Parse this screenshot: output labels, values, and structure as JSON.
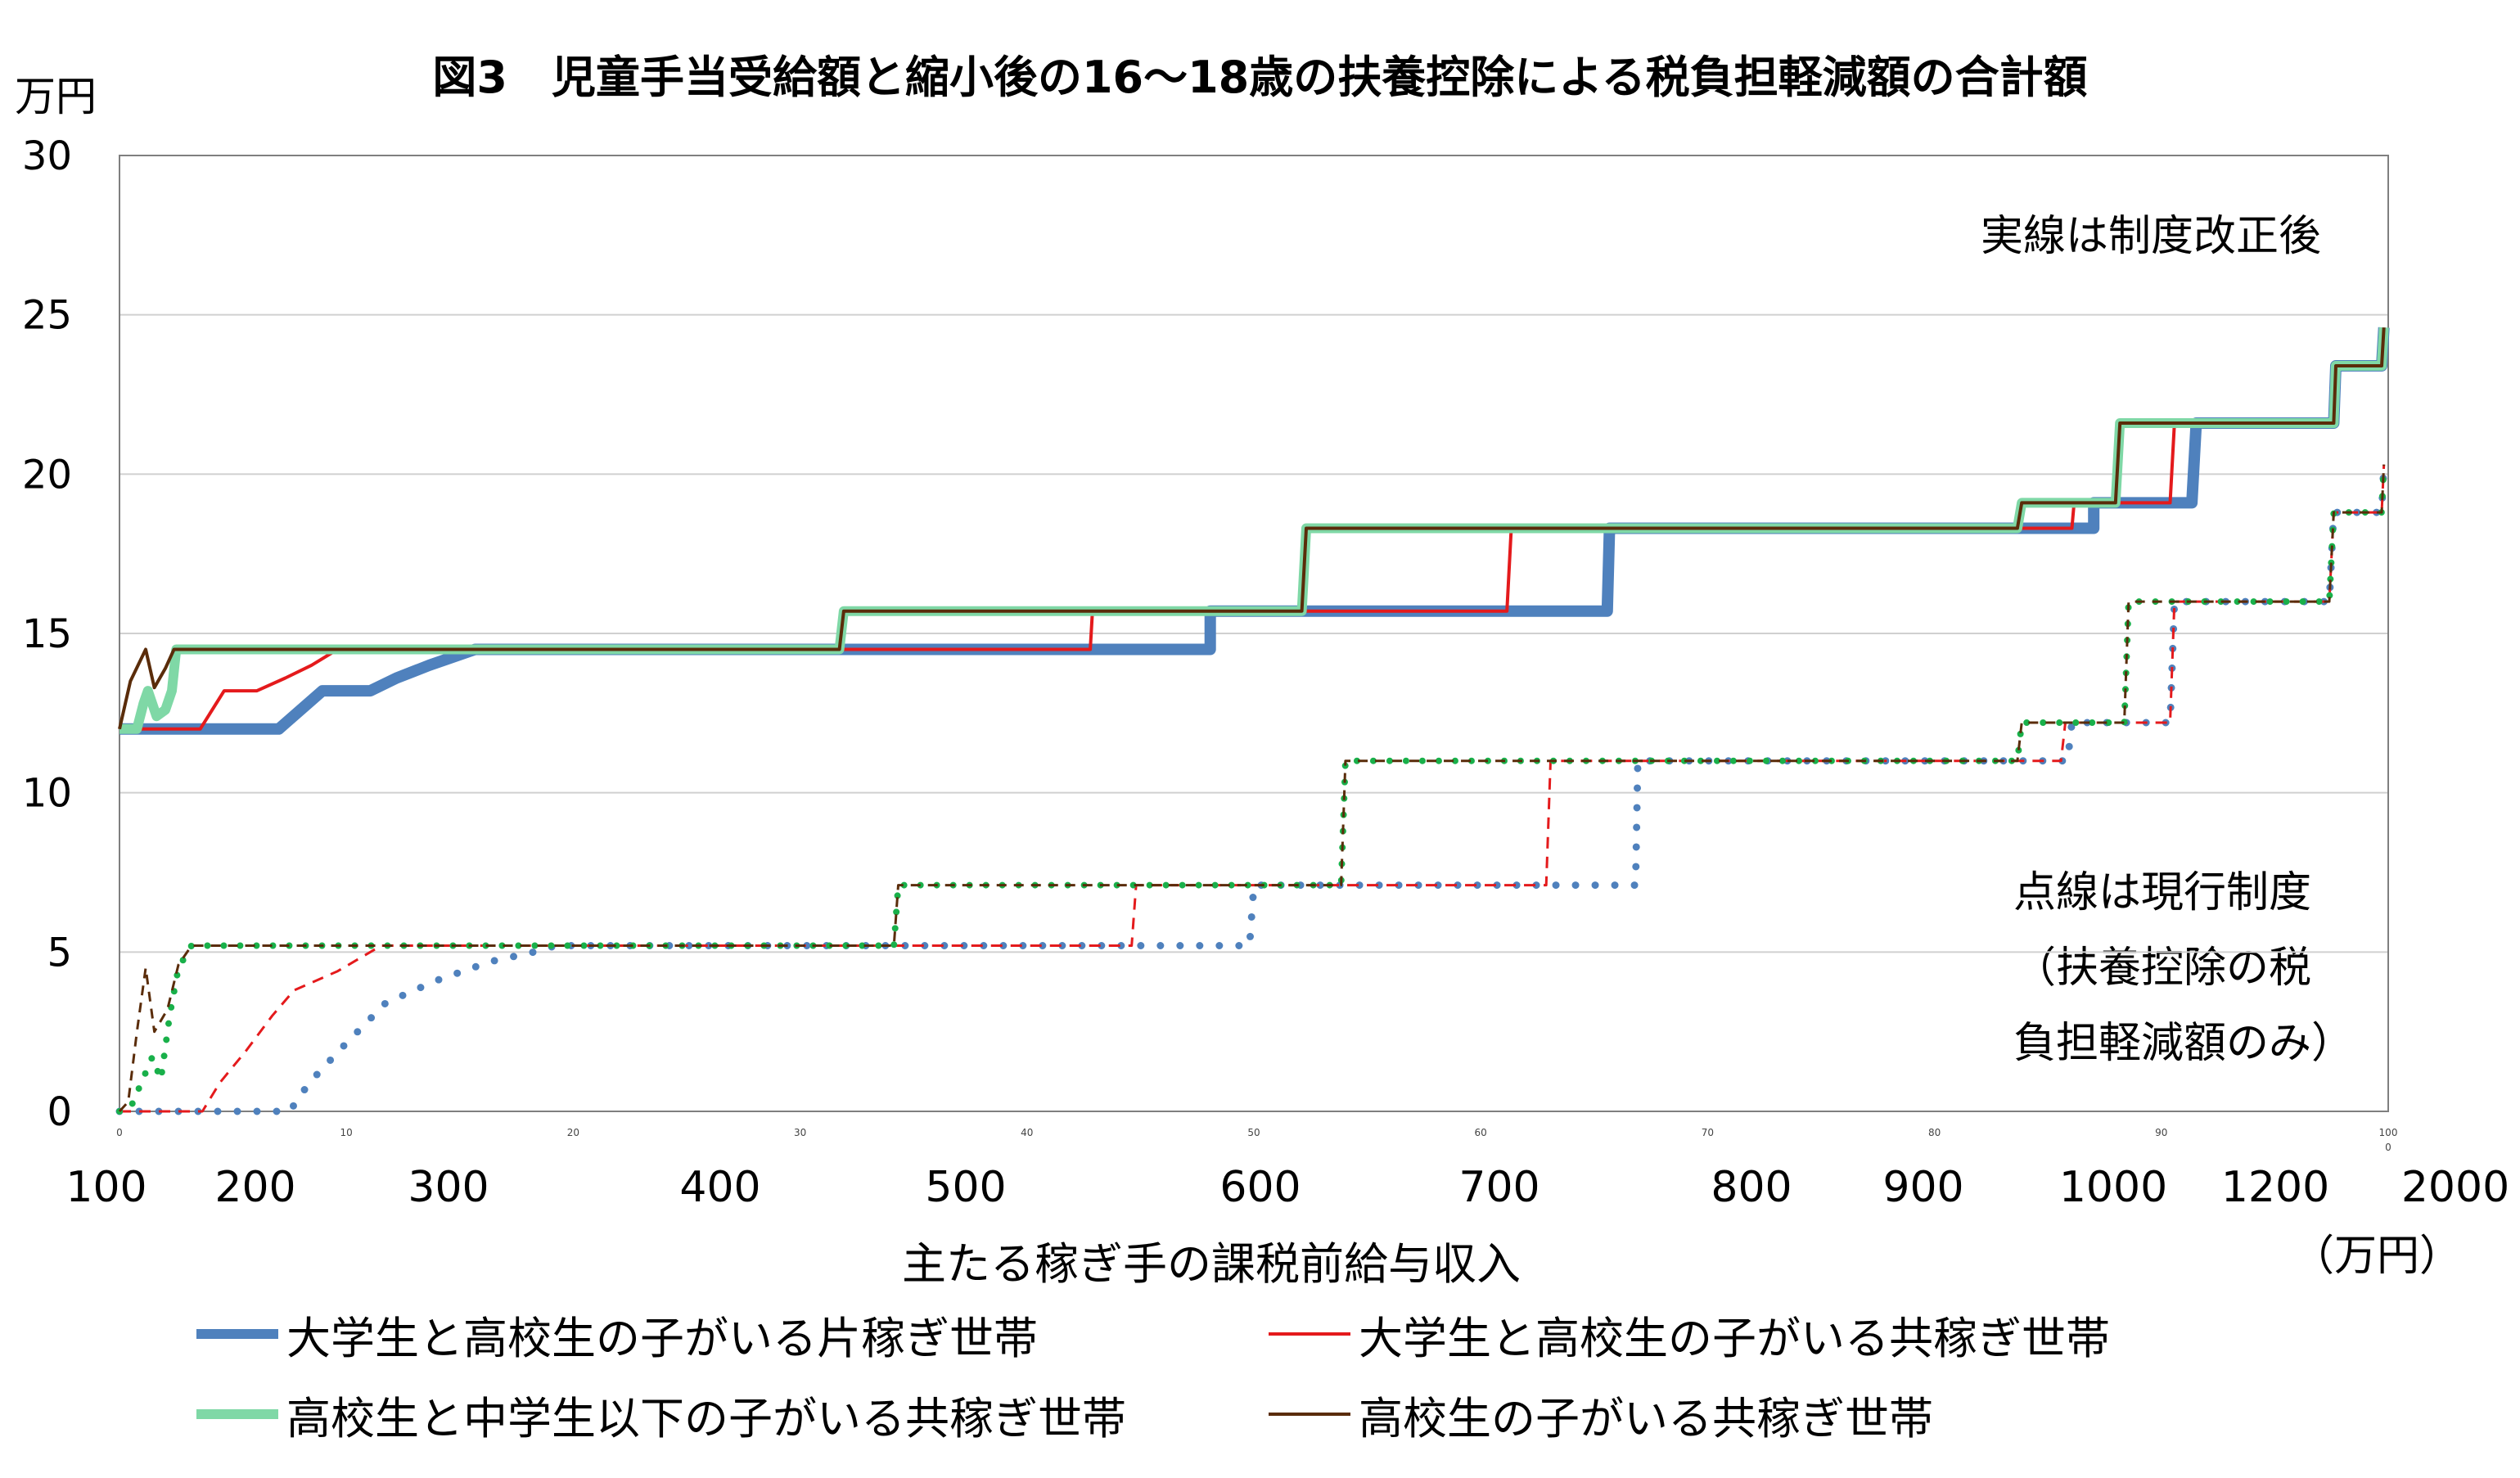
{
  "chart_data": {
    "type": "line",
    "title": "図3　児童手当受給額と縮小後の16～18歳の扶養控除による税負担軽減額の合計額",
    "y_unit": "万円",
    "xlabel": "主たる稼ぎ手の課税前給与収入",
    "x_unit": "（万円）",
    "ylim": [
      0,
      30
    ],
    "yticks": [
      "0",
      "5",
      "10",
      "15",
      "20",
      "25",
      "30"
    ],
    "xticks": [
      "100",
      "200",
      "300",
      "400",
      "500",
      "600",
      "700",
      "800",
      "900",
      "1000",
      "1200",
      "2000"
    ],
    "x_minor_ticks": [
      "0",
      "10",
      "20",
      "30",
      "40",
      "50",
      "60",
      "70",
      "80",
      "90",
      "100"
    ],
    "x_minor_last_sub": "0",
    "grid": true,
    "legend_position": "bottom",
    "note_solid": "実線は制度改正後",
    "note_dotted": "点線は現行制度\n（扶養控除の税\n負担軽減額のみ）",
    "series": [
      {
        "name": "大学生と高校生の子がいる片稼ぎ世帯",
        "color": "#4F81BD",
        "solid": [
          [
            0,
            12
          ],
          [
            7.3,
            12
          ],
          [
            9.3,
            13.2
          ],
          [
            11.5,
            13.2
          ],
          [
            12.7,
            13.6
          ],
          [
            14.2,
            14
          ],
          [
            16.3,
            14.5
          ],
          [
            50,
            14.5
          ],
          [
            50,
            15.7
          ],
          [
            68.2,
            15.7
          ],
          [
            68.3,
            18.3
          ],
          [
            90.5,
            18.3
          ],
          [
            90.5,
            19.1
          ],
          [
            95,
            19.1
          ],
          [
            95.2,
            21.6
          ],
          [
            101.5,
            21.6
          ],
          [
            101.6,
            23.4
          ],
          [
            103.7,
            23.4
          ],
          [
            103.8,
            24.6
          ]
        ],
        "dotted": [
          [
            0,
            0
          ],
          [
            7.8,
            0
          ],
          [
            8.7,
            0.9
          ],
          [
            10.2,
            2
          ],
          [
            12.2,
            3.4
          ],
          [
            14.5,
            4.1
          ],
          [
            17,
            4.7
          ],
          [
            19,
            5
          ],
          [
            20,
            5.2
          ],
          [
            51.8,
            5.2
          ],
          [
            52,
            7.1
          ],
          [
            69.5,
            7.1
          ],
          [
            69.6,
            11
          ],
          [
            89.3,
            11
          ],
          [
            89.5,
            12.2
          ],
          [
            94,
            12.2
          ],
          [
            94.2,
            16
          ],
          [
            101.3,
            16
          ],
          [
            101.5,
            18.8
          ],
          [
            103.7,
            18.8
          ],
          [
            103.8,
            20.3
          ]
        ]
      },
      {
        "name": "大学生と高校生の子がいる共稼ぎ世帯",
        "color": "#E41A1C",
        "solid": [
          [
            0,
            12
          ],
          [
            3.7,
            12
          ],
          [
            4.8,
            13.2
          ],
          [
            6.3,
            13.2
          ],
          [
            7.6,
            13.6
          ],
          [
            8.8,
            14
          ],
          [
            10,
            14.5
          ],
          [
            44.5,
            14.5
          ],
          [
            44.6,
            15.7
          ],
          [
            63.6,
            15.7
          ],
          [
            63.8,
            18.3
          ],
          [
            89.5,
            18.3
          ],
          [
            89.6,
            19.1
          ],
          [
            94,
            19.1
          ],
          [
            94.2,
            21.6
          ],
          [
            101.5,
            21.6
          ],
          [
            101.6,
            23.4
          ],
          [
            103.7,
            23.4
          ],
          [
            103.8,
            24.6
          ]
        ],
        "dotted": [
          [
            0,
            0
          ],
          [
            3.8,
            0
          ],
          [
            4.6,
            0.9
          ],
          [
            5.8,
            1.9
          ],
          [
            7,
            3
          ],
          [
            8,
            3.8
          ],
          [
            10,
            4.4
          ],
          [
            11.5,
            5
          ],
          [
            12,
            5.2
          ],
          [
            46.4,
            5.2
          ],
          [
            46.6,
            7.1
          ],
          [
            65.4,
            7.1
          ],
          [
            65.6,
            11
          ],
          [
            89,
            11
          ],
          [
            89.2,
            12.2
          ],
          [
            94,
            12.2
          ],
          [
            94.2,
            16
          ],
          [
            101.3,
            16
          ],
          [
            101.5,
            18.8
          ],
          [
            103.7,
            18.8
          ],
          [
            103.8,
            20.3
          ]
        ]
      },
      {
        "name": "高校生と中学生以下の子がいる共稼ぎ世帯",
        "color": "#7FD8A6",
        "solid": [
          [
            0,
            12
          ],
          [
            0.8,
            12
          ],
          [
            1.1,
            12.8
          ],
          [
            1.3,
            13.2
          ],
          [
            1.7,
            12.4
          ],
          [
            2.1,
            12.6
          ],
          [
            2.4,
            13.2
          ],
          [
            2.6,
            14.5
          ],
          [
            33,
            14.5
          ],
          [
            33.2,
            15.7
          ],
          [
            54.2,
            15.7
          ],
          [
            54.4,
            18.3
          ],
          [
            87,
            18.3
          ],
          [
            87.2,
            19.1
          ],
          [
            91.5,
            19.1
          ],
          [
            91.7,
            21.6
          ],
          [
            101.5,
            21.6
          ],
          [
            101.6,
            23.4
          ],
          [
            103.7,
            23.4
          ],
          [
            103.8,
            24.6
          ]
        ],
        "dotted": [
          [
            0,
            0
          ],
          [
            0.5,
            0.1
          ],
          [
            1,
            0.9
          ],
          [
            1.5,
            1.7
          ],
          [
            1.9,
            1.0
          ],
          [
            2.3,
            3
          ],
          [
            2.7,
            4.5
          ],
          [
            3.3,
            5.2
          ],
          [
            35.5,
            5.2
          ],
          [
            35.7,
            7.1
          ],
          [
            56,
            7.1
          ],
          [
            56.2,
            11
          ],
          [
            87,
            11
          ],
          [
            87.2,
            12.2
          ],
          [
            91.9,
            12.2
          ],
          [
            92.1,
            16
          ],
          [
            101.3,
            16
          ],
          [
            101.5,
            18.8
          ],
          [
            103.7,
            18.8
          ],
          [
            103.8,
            20.3
          ]
        ]
      },
      {
        "name": "高校生の子がいる共稼ぎ世帯",
        "color": "#5A2C0A",
        "solid": [
          [
            0,
            12
          ],
          [
            0.5,
            13.5
          ],
          [
            1.2,
            14.5
          ],
          [
            1.6,
            13.3
          ],
          [
            2.1,
            13.9
          ],
          [
            2.5,
            14.5
          ],
          [
            33,
            14.5
          ],
          [
            33.2,
            15.7
          ],
          [
            54.2,
            15.7
          ],
          [
            54.4,
            18.3
          ],
          [
            87,
            18.3
          ],
          [
            87.2,
            19.1
          ],
          [
            91.5,
            19.1
          ],
          [
            91.7,
            21.6
          ],
          [
            101.5,
            21.6
          ],
          [
            101.6,
            23.4
          ],
          [
            103.7,
            23.4
          ],
          [
            103.8,
            24.6
          ]
        ],
        "dotted": [
          [
            0,
            0
          ],
          [
            0.4,
            0.3
          ],
          [
            0.8,
            2.5
          ],
          [
            1.2,
            4.5
          ],
          [
            1.6,
            2.5
          ],
          [
            2.2,
            3.2
          ],
          [
            2.7,
            4.6
          ],
          [
            3.3,
            5.2
          ],
          [
            35.5,
            5.2
          ],
          [
            35.7,
            7.1
          ],
          [
            56,
            7.1
          ],
          [
            56.2,
            11
          ],
          [
            87,
            11
          ],
          [
            87.2,
            12.2
          ],
          [
            91.9,
            12.2
          ],
          [
            92.1,
            16
          ],
          [
            101.3,
            16
          ],
          [
            101.5,
            18.8
          ],
          [
            103.7,
            18.8
          ],
          [
            103.8,
            20.3
          ]
        ]
      }
    ]
  }
}
